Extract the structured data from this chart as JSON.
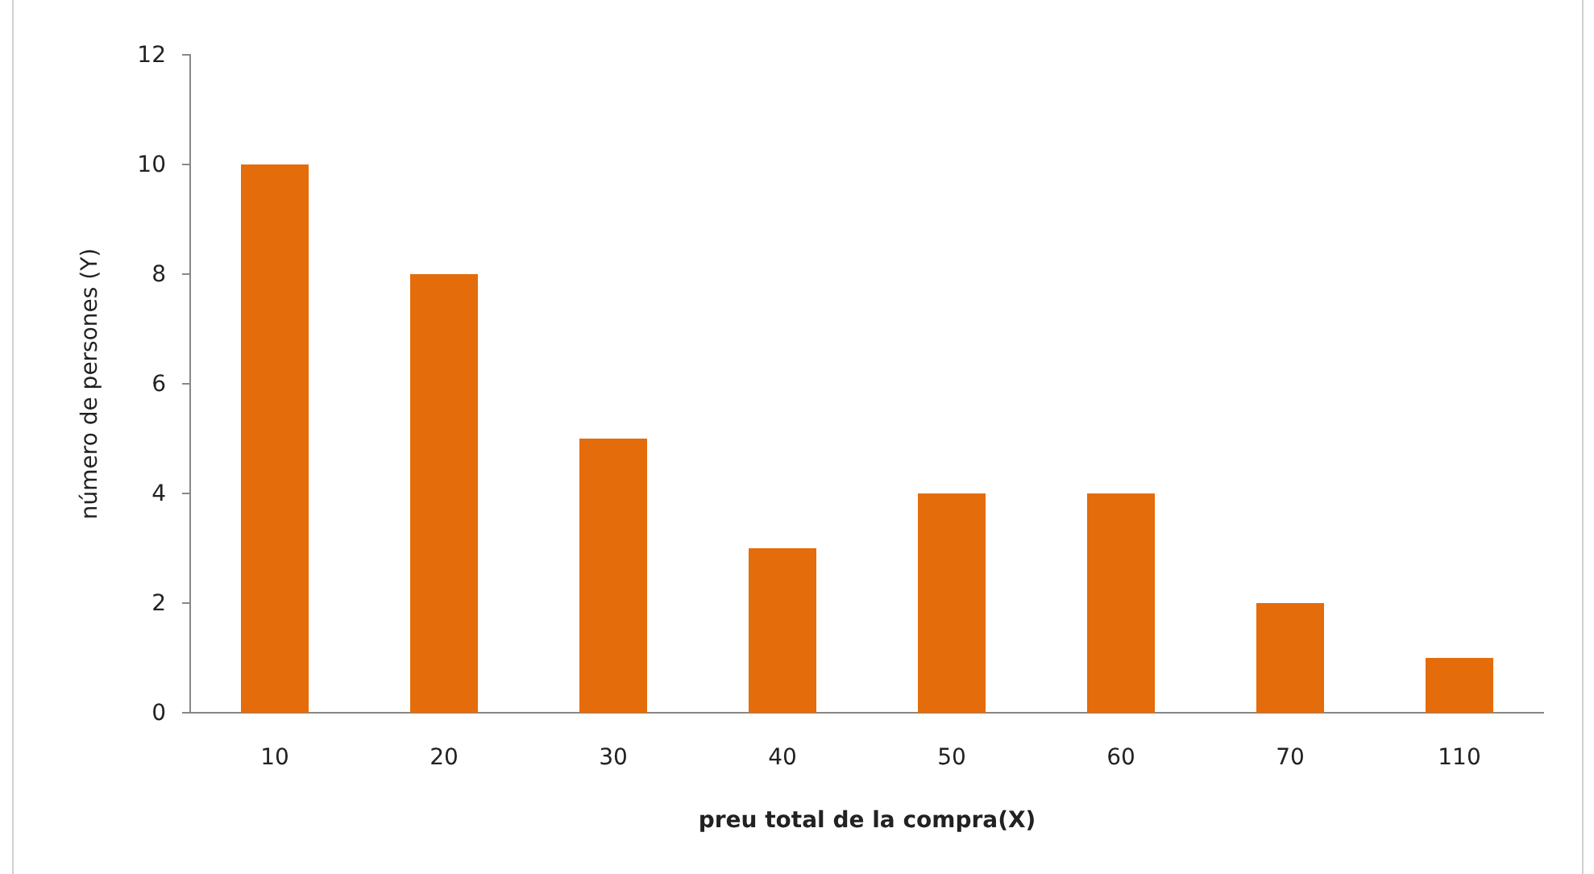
{
  "chart_data": {
    "type": "bar",
    "xlabel": "preu total de la compra(X)",
    "ylabel": "número de persones (Y)",
    "categories": [
      "10",
      "20",
      "30",
      "40",
      "50",
      "60",
      "70",
      "110"
    ],
    "values": [
      10,
      8,
      5,
      3,
      4,
      4,
      2,
      1
    ],
    "color": "#e46c0a",
    "ylim": [
      0,
      12
    ],
    "yticks": [
      0,
      2,
      4,
      6,
      8,
      10,
      12
    ],
    "grid": false
  }
}
